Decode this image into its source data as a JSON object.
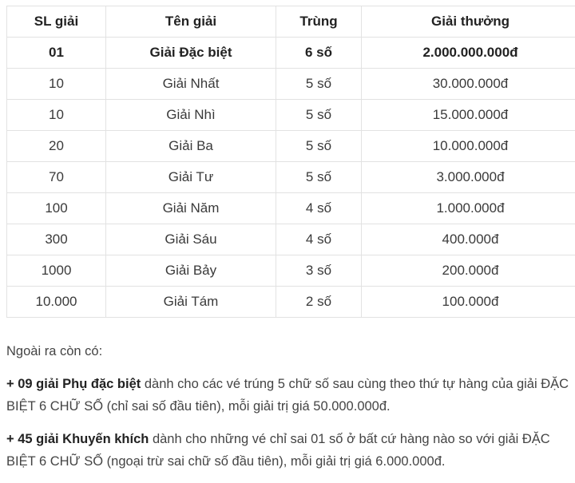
{
  "table": {
    "headers": [
      "SL giải",
      "Tên giải",
      "Trùng",
      "Giải thưởng"
    ],
    "rows": [
      [
        "01",
        "Giải Đặc biệt",
        "6 số",
        "2.000.000.000đ"
      ],
      [
        "10",
        "Giải Nhất",
        "5 số",
        "30.000.000đ"
      ],
      [
        "10",
        "Giải Nhì",
        "5 số",
        "15.000.000đ"
      ],
      [
        "20",
        "Giải Ba",
        "5 số",
        "10.000.000đ"
      ],
      [
        "70",
        "Giải Tư",
        "5 số",
        "3.000.000đ"
      ],
      [
        "100",
        "Giải Năm",
        "4 số",
        "1.000.000đ"
      ],
      [
        "300",
        "Giải Sáu",
        "4 số",
        "400.000đ"
      ],
      [
        "1000",
        "Giải Bảy",
        "3 số",
        "200.000đ"
      ],
      [
        "10.000",
        "Giải Tám",
        "2 số",
        "100.000đ"
      ]
    ]
  },
  "notes": {
    "intro": "Ngoài ra còn có:",
    "p1_bold": "+ 09 giải Phụ đặc biệt",
    "p1_text": " dành cho các vé trúng 5 chữ số sau cùng theo thứ tự hàng của giải ĐẶC BIỆT 6 CHỮ SỐ (chỉ sai số đầu tiên), mỗi giải trị giá 50.000.000đ.",
    "p2_bold": "+ 45 giải Khuyến khích",
    "p2_text": " dành cho những vé chỉ sai 01 số ở bất cứ hàng nào so với giải ĐẶC BIỆT 6 CHỮ SỐ (ngoại trừ sai chữ số đầu tiên), mỗi giải trị giá 6.000.000đ."
  }
}
